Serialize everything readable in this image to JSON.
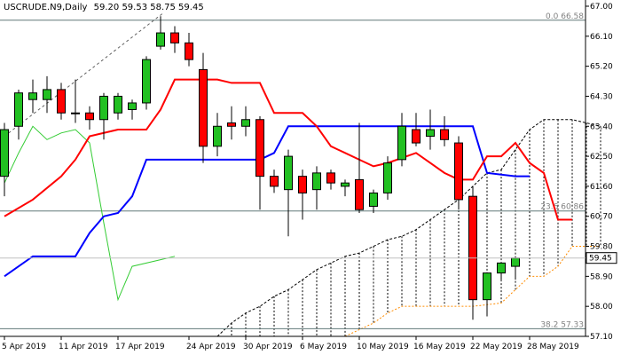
{
  "chart_data": {
    "type": "candlestick",
    "symbol": "USCRUDE.N9,Daily",
    "ohlc_header": "59.20 59.53 58.75 59.45",
    "current_price": "59.45",
    "ylim": [
      57.1,
      67.0
    ],
    "y_ticks": [
      "67.00",
      "66.10",
      "65.20",
      "64.30",
      "63.40",
      "62.50",
      "61.60",
      "60.70",
      "59.80",
      "58.90",
      "58.00",
      "57.10"
    ],
    "x_labels": [
      {
        "label": "5 Apr 2019",
        "bar": 0
      },
      {
        "label": "11 Apr 2019",
        "bar": 4
      },
      {
        "label": "17 Apr 2019",
        "bar": 8
      },
      {
        "label": "24 Apr 2019",
        "bar": 13
      },
      {
        "label": "30 Apr 2019",
        "bar": 17
      },
      {
        "label": "6 May 2019",
        "bar": 21
      },
      {
        "label": "10 May 2019",
        "bar": 25
      },
      {
        "label": "16 May 2019",
        "bar": 29
      },
      {
        "label": "22 May 2019",
        "bar": 33
      },
      {
        "label": "28 May 2019",
        "bar": 37
      }
    ],
    "candles": [
      {
        "o": 61.9,
        "h": 63.5,
        "l": 61.3,
        "c": 63.3
      },
      {
        "o": 63.4,
        "h": 64.5,
        "l": 63.0,
        "c": 64.4
      },
      {
        "o": 64.2,
        "h": 64.8,
        "l": 63.8,
        "c": 64.4
      },
      {
        "o": 64.2,
        "h": 64.9,
        "l": 63.8,
        "c": 64.5
      },
      {
        "o": 64.5,
        "h": 64.7,
        "l": 63.6,
        "c": 63.8
      },
      {
        "o": 63.8,
        "h": 64.8,
        "l": 63.5,
        "c": 63.8
      },
      {
        "o": 63.8,
        "h": 64.0,
        "l": 63.3,
        "c": 63.6
      },
      {
        "o": 63.6,
        "h": 64.4,
        "l": 63.0,
        "c": 64.3
      },
      {
        "o": 63.8,
        "h": 64.4,
        "l": 63.6,
        "c": 64.3
      },
      {
        "o": 63.9,
        "h": 64.2,
        "l": 63.6,
        "c": 64.1
      },
      {
        "o": 64.1,
        "h": 65.5,
        "l": 63.9,
        "c": 65.4
      },
      {
        "o": 65.8,
        "h": 66.7,
        "l": 65.7,
        "c": 66.2
      },
      {
        "o": 66.2,
        "h": 66.4,
        "l": 65.6,
        "c": 65.9
      },
      {
        "o": 65.9,
        "h": 66.2,
        "l": 65.2,
        "c": 65.4
      },
      {
        "o": 65.1,
        "h": 65.6,
        "l": 62.3,
        "c": 62.8
      },
      {
        "o": 62.8,
        "h": 63.8,
        "l": 62.5,
        "c": 63.4
      },
      {
        "o": 63.5,
        "h": 64.0,
        "l": 63.0,
        "c": 63.4
      },
      {
        "o": 63.4,
        "h": 64.0,
        "l": 63.1,
        "c": 63.6
      },
      {
        "o": 63.6,
        "h": 63.7,
        "l": 60.9,
        "c": 61.9
      },
      {
        "o": 61.9,
        "h": 62.1,
        "l": 61.4,
        "c": 61.6
      },
      {
        "o": 61.5,
        "h": 62.7,
        "l": 60.1,
        "c": 62.5
      },
      {
        "o": 61.9,
        "h": 62.1,
        "l": 60.6,
        "c": 61.4
      },
      {
        "o": 61.5,
        "h": 62.2,
        "l": 60.9,
        "c": 62.0
      },
      {
        "o": 62.0,
        "h": 62.1,
        "l": 61.5,
        "c": 61.7
      },
      {
        "o": 61.6,
        "h": 61.8,
        "l": 61.3,
        "c": 61.7
      },
      {
        "o": 61.8,
        "h": 63.5,
        "l": 60.8,
        "c": 60.9
      },
      {
        "o": 61.0,
        "h": 61.5,
        "l": 60.8,
        "c": 61.4
      },
      {
        "o": 61.4,
        "h": 62.5,
        "l": 61.2,
        "c": 62.3
      },
      {
        "o": 62.4,
        "h": 63.8,
        "l": 62.2,
        "c": 63.4
      },
      {
        "o": 63.3,
        "h": 63.8,
        "l": 62.8,
        "c": 62.9
      },
      {
        "o": 63.1,
        "h": 63.9,
        "l": 62.7,
        "c": 63.3
      },
      {
        "o": 63.3,
        "h": 63.7,
        "l": 62.8,
        "c": 63.0
      },
      {
        "o": 62.9,
        "h": 63.1,
        "l": 60.9,
        "c": 61.2
      },
      {
        "o": 61.3,
        "h": 61.6,
        "l": 57.6,
        "c": 58.2
      },
      {
        "o": 58.2,
        "h": 59.0,
        "l": 57.7,
        "c": 59.0
      },
      {
        "o": 59.0,
        "h": 59.3,
        "l": 58.8,
        "c": 59.3
      },
      {
        "o": 59.2,
        "h": 59.5,
        "l": 58.8,
        "c": 59.45
      }
    ],
    "tenkan": [
      [
        0,
        60.7
      ],
      [
        2,
        61.2
      ],
      [
        4,
        61.9
      ],
      [
        5,
        62.4
      ],
      [
        6,
        63.1
      ],
      [
        8,
        63.3
      ],
      [
        10,
        63.3
      ],
      [
        11,
        63.9
      ],
      [
        12,
        64.8
      ],
      [
        15,
        64.8
      ],
      [
        16,
        64.7
      ],
      [
        18,
        64.7
      ],
      [
        19,
        63.8
      ],
      [
        21,
        63.8
      ],
      [
        22,
        63.4
      ],
      [
        23,
        62.8
      ],
      [
        24,
        62.6
      ],
      [
        25,
        62.4
      ],
      [
        26,
        62.2
      ],
      [
        27,
        62.3
      ],
      [
        29,
        62.6
      ],
      [
        30,
        62.3
      ],
      [
        31,
        62.0
      ],
      [
        32,
        61.8
      ],
      [
        33,
        61.8
      ],
      [
        34,
        62.5
      ],
      [
        35,
        62.5
      ],
      [
        36,
        62.9
      ],
      [
        37,
        62.3
      ],
      [
        38,
        62.0
      ],
      [
        39,
        60.6
      ],
      [
        40,
        60.6
      ]
    ],
    "kijun": [
      [
        0,
        58.9
      ],
      [
        2,
        59.5
      ],
      [
        5,
        59.5
      ],
      [
        6,
        60.2
      ],
      [
        7,
        60.7
      ],
      [
        8,
        60.8
      ],
      [
        9,
        61.3
      ],
      [
        10,
        62.4
      ],
      [
        12,
        62.4
      ],
      [
        18,
        62.4
      ],
      [
        19,
        62.6
      ],
      [
        20,
        63.4
      ],
      [
        33,
        63.4
      ],
      [
        34,
        62.0
      ],
      [
        36,
        61.9
      ],
      [
        37,
        61.9
      ]
    ],
    "chikou": [
      [
        0,
        61.7
      ],
      [
        1,
        62.6
      ],
      [
        2,
        63.4
      ],
      [
        3,
        63.0
      ],
      [
        4,
        63.2
      ],
      [
        5,
        63.3
      ],
      [
        6,
        62.9
      ],
      [
        7,
        60.5
      ],
      [
        8,
        58.2
      ],
      [
        9,
        59.2
      ],
      [
        11,
        59.4
      ],
      [
        12,
        59.5
      ]
    ],
    "senkou_a": [
      [
        15,
        57.1
      ],
      [
        16,
        57.5
      ],
      [
        17,
        57.8
      ],
      [
        18,
        58.0
      ],
      [
        19,
        58.3
      ],
      [
        20,
        58.5
      ],
      [
        21,
        58.8
      ],
      [
        22,
        59.1
      ],
      [
        23,
        59.3
      ],
      [
        24,
        59.5
      ],
      [
        25,
        59.6
      ],
      [
        26,
        59.8
      ],
      [
        27,
        60.0
      ],
      [
        28,
        60.1
      ],
      [
        29,
        60.3
      ],
      [
        30,
        60.6
      ],
      [
        31,
        60.9
      ],
      [
        32,
        61.2
      ],
      [
        33,
        61.6
      ],
      [
        34,
        62.0
      ],
      [
        35,
        62.1
      ],
      [
        36,
        62.7
      ],
      [
        37,
        63.3
      ],
      [
        38,
        63.6
      ],
      [
        40,
        63.6
      ],
      [
        41,
        63.5
      ],
      [
        42,
        63.4
      ]
    ],
    "senkou_b": [
      [
        24,
        57.1
      ],
      [
        25,
        57.3
      ],
      [
        26,
        57.5
      ],
      [
        27,
        57.8
      ],
      [
        28,
        58.0
      ],
      [
        31,
        58.0
      ],
      [
        33,
        58.0
      ],
      [
        35,
        58.1
      ],
      [
        36,
        58.5
      ],
      [
        37,
        58.9
      ],
      [
        38,
        58.9
      ],
      [
        39,
        59.2
      ],
      [
        40,
        59.8
      ],
      [
        42,
        59.8
      ]
    ],
    "fibo_levels": [
      {
        "label": "0.0 66.58",
        "value": 66.58
      },
      {
        "label": "23.6 60.86",
        "value": 60.86
      },
      {
        "label": "38.2 57.33",
        "value": 57.33
      }
    ],
    "colors": {
      "bull": "#22c022",
      "bear": "#ff0000",
      "tenkan": "#ff0000",
      "kijun": "#0000ff",
      "chikou": "#33cc33",
      "senkou_a": "#000000",
      "senkou_b": "#ff8c00",
      "fibo": "#607878",
      "grid": "#808080"
    }
  }
}
